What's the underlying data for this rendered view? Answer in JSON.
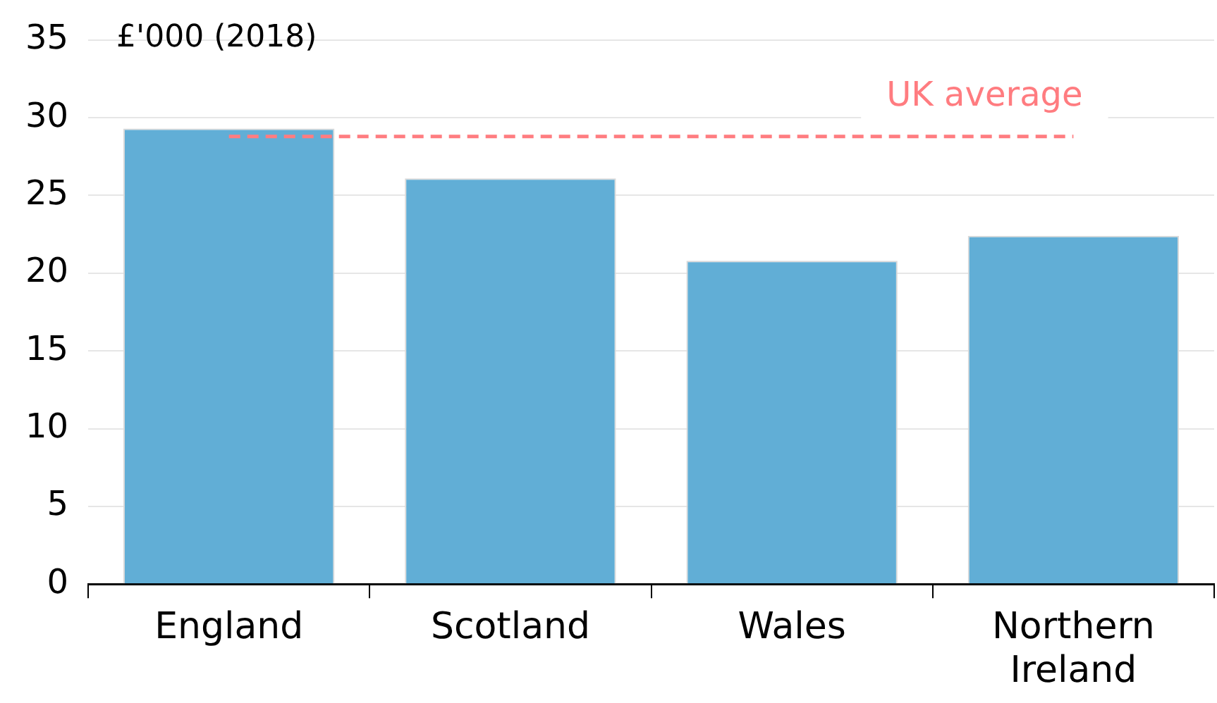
{
  "chart_data": {
    "type": "bar",
    "ylabel": "£'000 (2018)",
    "categories": [
      "England",
      "Scotland",
      "Wales",
      "Northern Ireland"
    ],
    "values": [
      29.3,
      26.1,
      20.8,
      22.4
    ],
    "color": "#61aed6",
    "ylim": [
      0,
      35
    ],
    "yticks": [
      0,
      5,
      10,
      15,
      20,
      25,
      30,
      35
    ],
    "grid": "y",
    "ref_lines": [
      {
        "axis": "y",
        "value": 28.8,
        "label": "UK average",
        "color": "#ff7c80",
        "line_style": "dashed"
      }
    ]
  }
}
